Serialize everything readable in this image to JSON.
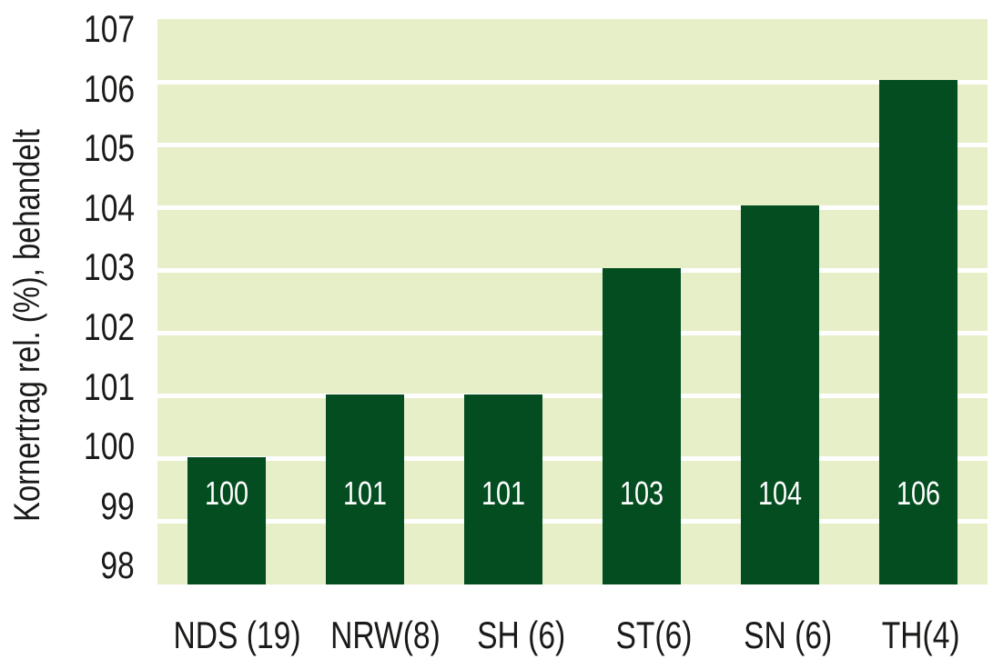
{
  "chart_data": {
    "type": "bar",
    "title": "",
    "xlabel": "",
    "ylabel": "Kornertrag rel. (%), behandelt",
    "categories": [
      "NDS (19)",
      "NRW(8)",
      "SH (6)",
      "ST(6)",
      "SN (6)",
      "TH(4)"
    ],
    "values": [
      100,
      101,
      101,
      103,
      104,
      106
    ],
    "bar_labels": [
      "100",
      "101",
      "101",
      "103",
      "104",
      "106"
    ],
    "ylim": [
      98,
      107
    ],
    "yticks": [
      98,
      99,
      100,
      101,
      102,
      103,
      104,
      105,
      106,
      107
    ],
    "grid": "horizontal",
    "legend_position": "none",
    "colors": {
      "bar": "#034D20",
      "plot_background": "#E7EFC9",
      "gridline": "#FFFFFF",
      "axis_text": "#1A1A18",
      "bar_label_text": "#FFFFFF",
      "page_background": "#FFFFFF"
    }
  }
}
